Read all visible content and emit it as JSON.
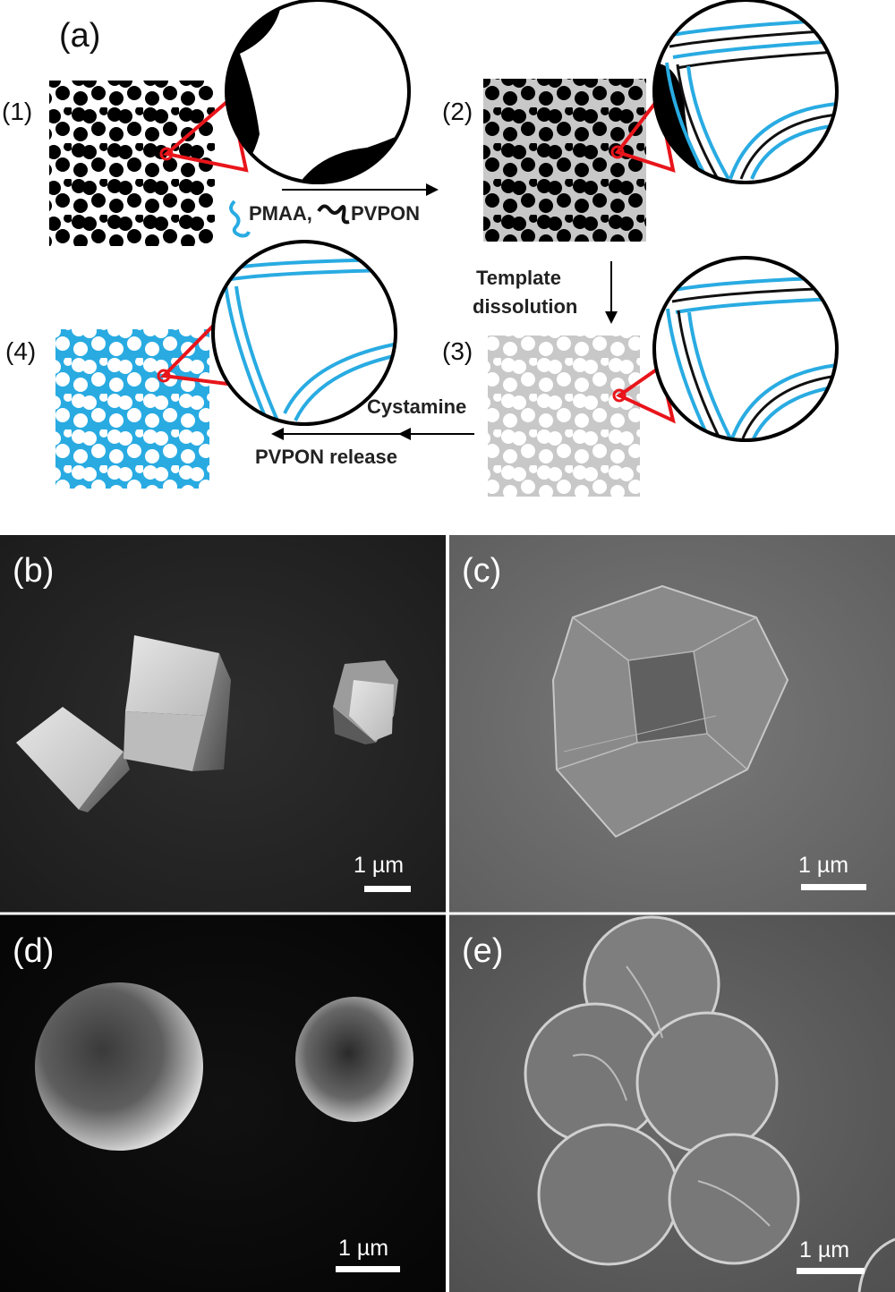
{
  "figure": {
    "panel_a": {
      "label": "(a)",
      "steps": {
        "s1": "(1)",
        "s2": "(2)",
        "s3": "(3)",
        "s4": "(4)"
      },
      "arrows": {
        "a12_legend_1": "PMAA,",
        "a12_legend_2": "PVPON",
        "a23_line1": "Template",
        "a23_line2": "dissolution",
        "a34_line1": "Cystamine",
        "a34_line2": "PVPON release"
      },
      "colors": {
        "pmaa": "#29abe2",
        "pvpon": "#111111",
        "template": "#000000",
        "pores_filled": "#c8c8c8",
        "zoom_line": "#e8151b"
      }
    },
    "sem_panels": {
      "b": {
        "label": "(b)",
        "scale": "1 µm"
      },
      "c": {
        "label": "(c)",
        "scale": "1 µm"
      },
      "d": {
        "label": "(d)",
        "scale": "1 µm"
      },
      "e": {
        "label": "(e)",
        "scale": "1 µm"
      }
    }
  }
}
